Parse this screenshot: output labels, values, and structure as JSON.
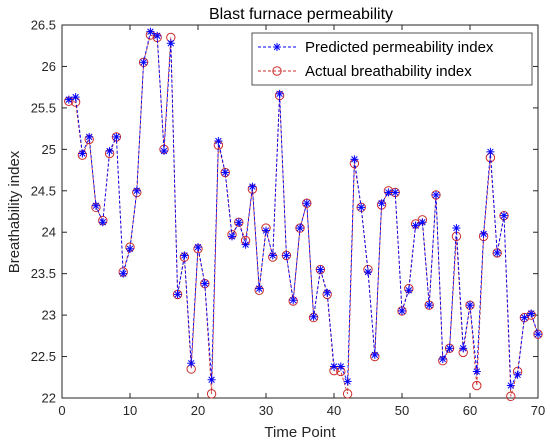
{
  "chart_data": {
    "type": "line",
    "title": "Blast furnace permeability",
    "xlabel": "Time Point",
    "ylabel": "Breathability index",
    "xlim": [
      0,
      70
    ],
    "ylim": [
      22,
      26.5
    ],
    "xticks": [
      0,
      10,
      20,
      30,
      40,
      50,
      60,
      70
    ],
    "yticks": [
      22,
      22.5,
      23,
      23.5,
      24,
      24.5,
      25,
      25.5,
      26,
      26.5
    ],
    "ytick_labels": [
      "22",
      "22.5",
      "23",
      "23.5",
      "24",
      "24.5",
      "25",
      "25.5",
      "26",
      "26.5"
    ],
    "grid": false,
    "legend_position": "top-right",
    "series": [
      {
        "name": "Predicted permeability index",
        "color": "#0000ff",
        "line_style": "dashed",
        "marker": "asterisk",
        "x": [
          1,
          2,
          3,
          4,
          5,
          6,
          7,
          8,
          9,
          10,
          11,
          12,
          13,
          14,
          15,
          16,
          17,
          18,
          19,
          20,
          21,
          22,
          23,
          24,
          25,
          26,
          27,
          28,
          29,
          30,
          31,
          32,
          33,
          34,
          35,
          36,
          37,
          38,
          39,
          40,
          41,
          42,
          43,
          44,
          45,
          46,
          47,
          48,
          49,
          50,
          51,
          52,
          53,
          54,
          55,
          56,
          57,
          58,
          59,
          60,
          61,
          62,
          63,
          64,
          65,
          66,
          67,
          68,
          69,
          70
        ],
        "values": [
          25.6,
          25.63,
          24.95,
          25.15,
          24.32,
          24.12,
          24.98,
          25.15,
          23.5,
          23.8,
          24.5,
          26.05,
          26.42,
          26.37,
          24.98,
          26.28,
          23.25,
          23.72,
          22.42,
          23.82,
          23.38,
          22.22,
          25.1,
          24.72,
          23.95,
          24.12,
          23.85,
          24.55,
          23.32,
          24.02,
          23.72,
          25.67,
          23.72,
          23.18,
          24.05,
          24.35,
          22.98,
          23.55,
          23.27,
          22.38,
          22.38,
          22.2,
          24.88,
          24.3,
          23.52,
          22.52,
          24.35,
          24.48,
          24.48,
          23.05,
          23.3,
          24.08,
          24.12,
          23.12,
          24.45,
          22.47,
          22.6,
          24.05,
          22.6,
          23.12,
          22.32,
          23.98,
          24.97,
          23.75,
          24.2,
          22.15,
          22.28,
          22.97,
          23.02,
          22.77
        ]
      },
      {
        "name": "Actual breathability index",
        "color": "#cc2b2b",
        "line_style": "dashed",
        "marker": "circle",
        "x": [
          1,
          2,
          3,
          4,
          5,
          6,
          7,
          8,
          9,
          10,
          11,
          12,
          13,
          14,
          15,
          16,
          17,
          18,
          19,
          20,
          21,
          22,
          23,
          24,
          25,
          26,
          27,
          28,
          29,
          30,
          31,
          32,
          33,
          34,
          35,
          36,
          37,
          38,
          39,
          40,
          41,
          42,
          43,
          44,
          45,
          46,
          47,
          48,
          49,
          50,
          51,
          52,
          53,
          54,
          55,
          56,
          57,
          58,
          59,
          60,
          61,
          62,
          63,
          64,
          65,
          66,
          67,
          68,
          69,
          70
        ],
        "values": [
          25.58,
          25.57,
          24.93,
          25.12,
          24.3,
          24.14,
          24.95,
          25.15,
          23.52,
          23.82,
          24.48,
          26.05,
          26.38,
          26.35,
          25.0,
          26.35,
          23.25,
          23.7,
          22.35,
          23.8,
          23.38,
          22.05,
          25.05,
          24.72,
          23.97,
          24.12,
          23.9,
          24.52,
          23.3,
          24.05,
          23.7,
          25.65,
          23.72,
          23.17,
          24.05,
          24.35,
          22.97,
          23.55,
          23.25,
          22.33,
          22.32,
          22.05,
          24.83,
          24.3,
          23.55,
          22.5,
          24.33,
          24.5,
          24.48,
          23.05,
          23.32,
          24.1,
          24.15,
          23.12,
          24.45,
          22.45,
          22.6,
          23.95,
          22.55,
          23.12,
          22.15,
          23.95,
          24.9,
          23.75,
          24.2,
          22.02,
          22.32,
          22.97,
          23.0,
          22.77
        ]
      }
    ]
  }
}
